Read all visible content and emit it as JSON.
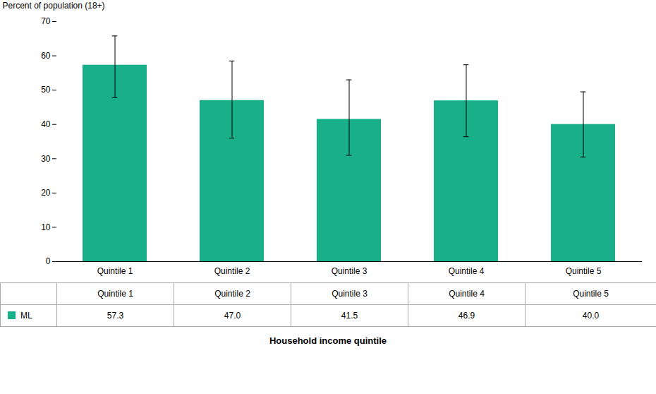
{
  "chart_data": {
    "type": "bar",
    "categories": [
      "Quintile 1",
      "Quintile 2",
      "Quintile 3",
      "Quintile 4",
      "Quintile 5"
    ],
    "series": [
      {
        "name": "ML",
        "color": "#1aaf8b",
        "values": [
          57.3,
          47.0,
          41.5,
          46.9,
          40.0
        ],
        "value_labels": [
          "57.3",
          "47.0",
          "41.5",
          "46.9",
          "40.0"
        ],
        "error_lower": [
          9.5,
          11.0,
          10.5,
          10.5,
          9.5
        ],
        "error_upper": [
          8.5,
          11.5,
          11.5,
          10.5,
          9.5
        ]
      }
    ],
    "ylabel": "Percent of population (18+)",
    "xlabel": "Household income quintile",
    "ylim": [
      0,
      70
    ],
    "yticks": [
      0,
      10,
      20,
      30,
      40,
      50,
      60,
      70
    ],
    "grid": false,
    "data_labels": true
  }
}
